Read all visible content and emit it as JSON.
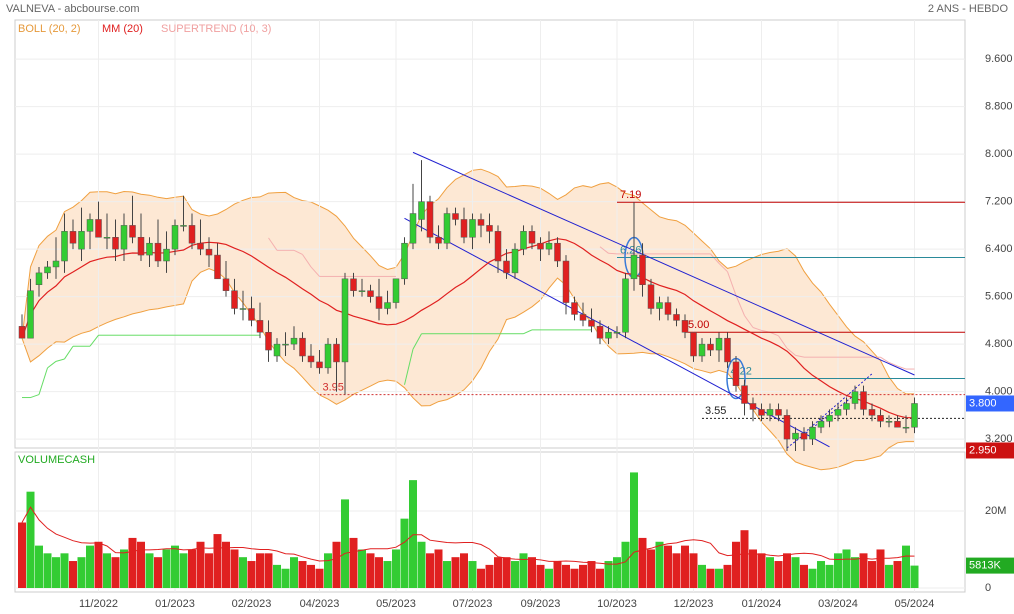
{
  "header": {
    "title": "VALNEVA - abcbourse.com",
    "period": "2 ANS - HEBDO"
  },
  "chart_data": {
    "type": "candlestick",
    "categories": [
      null,
      null,
      null,
      null,
      null,
      null,
      null,
      null,
      null,
      "11/2022",
      null,
      null,
      null,
      null,
      null,
      null,
      null,
      null,
      "01/2023",
      null,
      null,
      null,
      null,
      null,
      null,
      null,
      null,
      "02/2023",
      null,
      null,
      null,
      null,
      null,
      null,
      null,
      "04/2023",
      null,
      null,
      null,
      null,
      null,
      null,
      null,
      null,
      "05/2023",
      null,
      null,
      null,
      null,
      null,
      null,
      null,
      null,
      "07/2023",
      null,
      null,
      null,
      null,
      null,
      null,
      null,
      "09/2023",
      null,
      null,
      null,
      null,
      null,
      null,
      null,
      null,
      "10/2023",
      null,
      null,
      null,
      null,
      null,
      null,
      null,
      null,
      "12/2023",
      null,
      null,
      null,
      null,
      null,
      null,
      null,
      "01/2024",
      null,
      null,
      null,
      null,
      null,
      null,
      null,
      null,
      "03/2024",
      null,
      null,
      null,
      null,
      null,
      null,
      null,
      null,
      "05/2024"
    ],
    "price": {
      "open": [
        5.1,
        4.9,
        5.8,
        6.0,
        6.1,
        6.2,
        6.7,
        6.4,
        6.7,
        6.9,
        6.6,
        6.6,
        6.4,
        6.8,
        6.6,
        6.3,
        6.5,
        6.2,
        6.4,
        6.8,
        6.8,
        6.5,
        6.4,
        6.3,
        5.9,
        5.7,
        5.4,
        5.4,
        5.2,
        5.0,
        4.6,
        4.8,
        4.8,
        4.9,
        4.6,
        4.5,
        4.4,
        4.8,
        4.5,
        5.9,
        5.7,
        5.7,
        5.6,
        5.4,
        5.5,
        5.9,
        6.5,
        6.9,
        7.2,
        6.6,
        6.5,
        7.0,
        6.9,
        6.6,
        6.9,
        6.8,
        6.7,
        6.2,
        6.0,
        6.4,
        6.7,
        6.5,
        6.4,
        6.5,
        6.2,
        5.5,
        5.3,
        5.2,
        5.1,
        4.9,
        5.0,
        5.0,
        5.9,
        6.3,
        5.8,
        5.4,
        5.5,
        5.3,
        5.2,
        5.0,
        4.6,
        4.8,
        4.7,
        4.9,
        4.5,
        4.1,
        3.8,
        3.7,
        3.6,
        3.7,
        3.6,
        3.2,
        3.3,
        3.2,
        3.4,
        3.5,
        3.6,
        3.7,
        3.8,
        4.0,
        3.7,
        3.6,
        3.5,
        3.5,
        3.4,
        3.4
      ],
      "high": [
        5.3,
        5.9,
        6.1,
        6.2,
        6.6,
        7.0,
        6.9,
        7.1,
        7.0,
        7.2,
        7.0,
        6.9,
        7.0,
        7.3,
        7.0,
        6.6,
        6.9,
        6.7,
        6.9,
        7.3,
        7.0,
        6.9,
        6.6,
        6.5,
        6.2,
        5.9,
        5.7,
        5.6,
        5.5,
        5.2,
        4.9,
        5.0,
        5.1,
        5.0,
        4.8,
        4.7,
        4.9,
        4.9,
        6.0,
        6.0,
        5.9,
        5.8,
        5.9,
        5.7,
        5.9,
        6.6,
        7.5,
        7.9,
        7.3,
        6.8,
        7.1,
        7.1,
        7.1,
        7.0,
        7.0,
        7.0,
        6.8,
        6.4,
        6.5,
        6.8,
        6.8,
        6.6,
        6.7,
        6.6,
        6.3,
        5.6,
        5.5,
        5.4,
        5.2,
        5.1,
        5.1,
        6.0,
        7.19,
        6.5,
        5.9,
        5.6,
        5.6,
        5.4,
        5.3,
        5.0,
        4.9,
        4.9,
        5.0,
        5.0,
        4.6,
        4.2,
        3.9,
        3.8,
        3.8,
        3.8,
        3.7,
        3.4,
        3.4,
        3.5,
        3.6,
        3.7,
        3.8,
        3.9,
        4.1,
        4.1,
        3.8,
        3.7,
        3.6,
        3.6,
        3.6,
        3.9
      ],
      "low": [
        4.9,
        4.9,
        5.6,
        5.9,
        5.9,
        6.0,
        6.4,
        6.2,
        6.4,
        6.6,
        6.4,
        6.2,
        6.2,
        6.5,
        6.2,
        6.1,
        6.1,
        6.0,
        6.3,
        6.7,
        6.4,
        6.3,
        6.1,
        5.9,
        5.6,
        5.3,
        5.2,
        5.1,
        4.9,
        4.5,
        4.5,
        4.6,
        4.7,
        4.5,
        4.4,
        4.3,
        4.3,
        4.0,
        3.95,
        5.6,
        5.6,
        5.5,
        5.2,
        5.3,
        5.4,
        5.8,
        6.4,
        6.7,
        6.5,
        6.4,
        6.4,
        6.8,
        6.5,
        6.4,
        6.6,
        6.5,
        6.0,
        5.9,
        5.9,
        6.3,
        6.4,
        6.2,
        6.3,
        6.1,
        5.3,
        5.2,
        5.1,
        5.0,
        4.8,
        4.8,
        4.9,
        4.9,
        5.7,
        5.6,
        5.3,
        5.2,
        5.2,
        5.1,
        4.9,
        4.5,
        4.5,
        4.6,
        4.5,
        4.4,
        4.0,
        3.6,
        3.5,
        3.5,
        3.5,
        3.5,
        3.0,
        3.0,
        3.0,
        3.1,
        3.3,
        3.4,
        3.5,
        3.6,
        3.7,
        3.6,
        3.5,
        3.4,
        3.4,
        3.4,
        3.3,
        3.3
      ],
      "close": [
        4.9,
        5.7,
        6.0,
        6.1,
        6.2,
        6.7,
        6.5,
        6.7,
        6.9,
        6.6,
        6.6,
        6.4,
        6.8,
        6.6,
        6.3,
        6.5,
        6.2,
        6.4,
        6.8,
        6.8,
        6.5,
        6.4,
        6.3,
        5.9,
        5.7,
        5.4,
        5.4,
        5.2,
        5.0,
        4.7,
        4.8,
        4.8,
        4.9,
        4.6,
        4.5,
        4.4,
        4.8,
        4.5,
        5.9,
        5.7,
        5.7,
        5.6,
        5.4,
        5.5,
        5.9,
        6.5,
        7.0,
        7.2,
        6.6,
        6.5,
        7.0,
        6.9,
        6.6,
        6.9,
        6.8,
        6.7,
        6.2,
        6.0,
        6.4,
        6.7,
        6.5,
        6.4,
        6.5,
        6.2,
        5.5,
        5.3,
        5.2,
        5.1,
        4.9,
        5.0,
        5.0,
        5.9,
        6.3,
        5.8,
        5.4,
        5.5,
        5.3,
        5.2,
        5.0,
        4.6,
        4.8,
        4.7,
        4.9,
        4.5,
        4.1,
        3.8,
        3.7,
        3.6,
        3.7,
        3.6,
        3.2,
        3.3,
        3.2,
        3.4,
        3.5,
        3.6,
        3.7,
        3.8,
        4.0,
        3.7,
        3.6,
        3.5,
        3.5,
        3.4,
        3.4,
        3.8
      ],
      "up_color": "#33cc33",
      "down_color": "#e02020",
      "ylim": [
        3.05,
        10.26
      ],
      "yticks": [
        {
          "value": 3.2,
          "label": "3.200"
        },
        {
          "value": 4.0,
          "label": "4.000"
        },
        {
          "value": 4.8,
          "label": "4.800"
        },
        {
          "value": 5.6,
          "label": "5.600"
        },
        {
          "value": 6.4,
          "label": "6.400"
        },
        {
          "value": 7.2,
          "label": "7.200"
        },
        {
          "value": 8.0,
          "label": "8.000"
        },
        {
          "value": 8.8,
          "label": "8.800"
        },
        {
          "value": 9.6,
          "label": "9.600"
        }
      ],
      "boll": {
        "name": "BOLL (20, 2)",
        "period": 20,
        "k": 2,
        "color": "#f0a040",
        "fill": "#fde8d4"
      },
      "mm": {
        "name": "MM (20)",
        "period": 20,
        "color": "#e02020"
      },
      "supertrend": {
        "name": "SUPERTREND (10, 3)",
        "period": 10,
        "k": 3,
        "color": "#f4b0b0",
        "up_color": "#66dd66"
      },
      "levels": [
        {
          "value": 7.19,
          "label": "7.19",
          "color": "#c00000",
          "start": 70
        },
        {
          "value": 6.26,
          "label": "6.26",
          "color": "#2a8a9a",
          "start": 70,
          "ellipse": 72
        },
        {
          "value": 5.0,
          "label": "5.00",
          "color": "#c00000",
          "start": 78
        },
        {
          "value": 4.22,
          "label": "4.22",
          "color": "#2a8a9a",
          "start": 83,
          "ellipse": 84
        },
        {
          "value": 3.95,
          "label": "3.95",
          "color": "#d03030",
          "start": 35,
          "dash": true
        },
        {
          "value": 3.55,
          "label": "3.55",
          "color": "#222222",
          "start": 80,
          "dash": true
        }
      ],
      "channels": [
        {
          "color": "#2020d0",
          "points": [
            [
              46,
              8.03
            ],
            [
              105,
              4.28
            ]
          ]
        },
        {
          "color": "#2020d0",
          "points": [
            [
              45,
              6.92
            ],
            [
              95,
              3.07
            ]
          ]
        },
        {
          "color": "#2020d0",
          "points": [
            [
              92,
              3.3
            ],
            [
              100,
              4.3
            ]
          ],
          "dash": true
        },
        {
          "color": "#2020d0",
          "points": [
            [
              90,
              3.05
            ],
            [
              98,
              3.95
            ]
          ],
          "dash": true
        }
      ],
      "last": {
        "value": 3.8,
        "label": "3.800",
        "color": "#3366ff"
      },
      "extra": {
        "value": 2.95,
        "label": "2.950",
        "color": "#cc1111"
      }
    },
    "volume": {
      "name": "VOLUMECASH",
      "values": [
        17,
        25,
        11,
        9,
        8,
        9,
        7,
        8,
        11,
        12,
        9,
        8,
        10,
        13,
        12,
        9,
        8,
        10,
        11,
        9,
        10,
        12,
        9,
        14,
        12,
        10,
        8,
        7,
        9,
        9,
        6,
        5,
        8,
        7,
        6,
        5,
        9,
        12,
        23,
        13,
        10,
        9,
        8,
        7,
        10,
        18,
        28,
        12,
        9,
        10,
        7,
        8,
        9,
        7,
        5,
        6,
        8,
        8,
        7,
        9,
        8,
        6,
        5,
        7,
        6,
        5,
        6,
        7,
        5,
        7,
        8,
        12,
        30,
        13,
        10,
        12,
        11,
        9,
        11,
        9,
        6,
        5,
        5,
        6,
        12,
        15,
        10,
        9,
        8,
        7,
        9,
        8,
        6,
        5,
        7,
        6,
        9,
        10,
        8,
        9,
        7,
        10,
        6,
        7,
        11,
        5.813
      ],
      "ylim": [
        0,
        35.3
      ],
      "yticks": [
        0,
        {
          "value": 20,
          "label": "20M"
        }
      ],
      "ma_color": "#e02020",
      "last": {
        "value": 5.813,
        "label": "5813K",
        "color": "#22aa22"
      }
    }
  }
}
